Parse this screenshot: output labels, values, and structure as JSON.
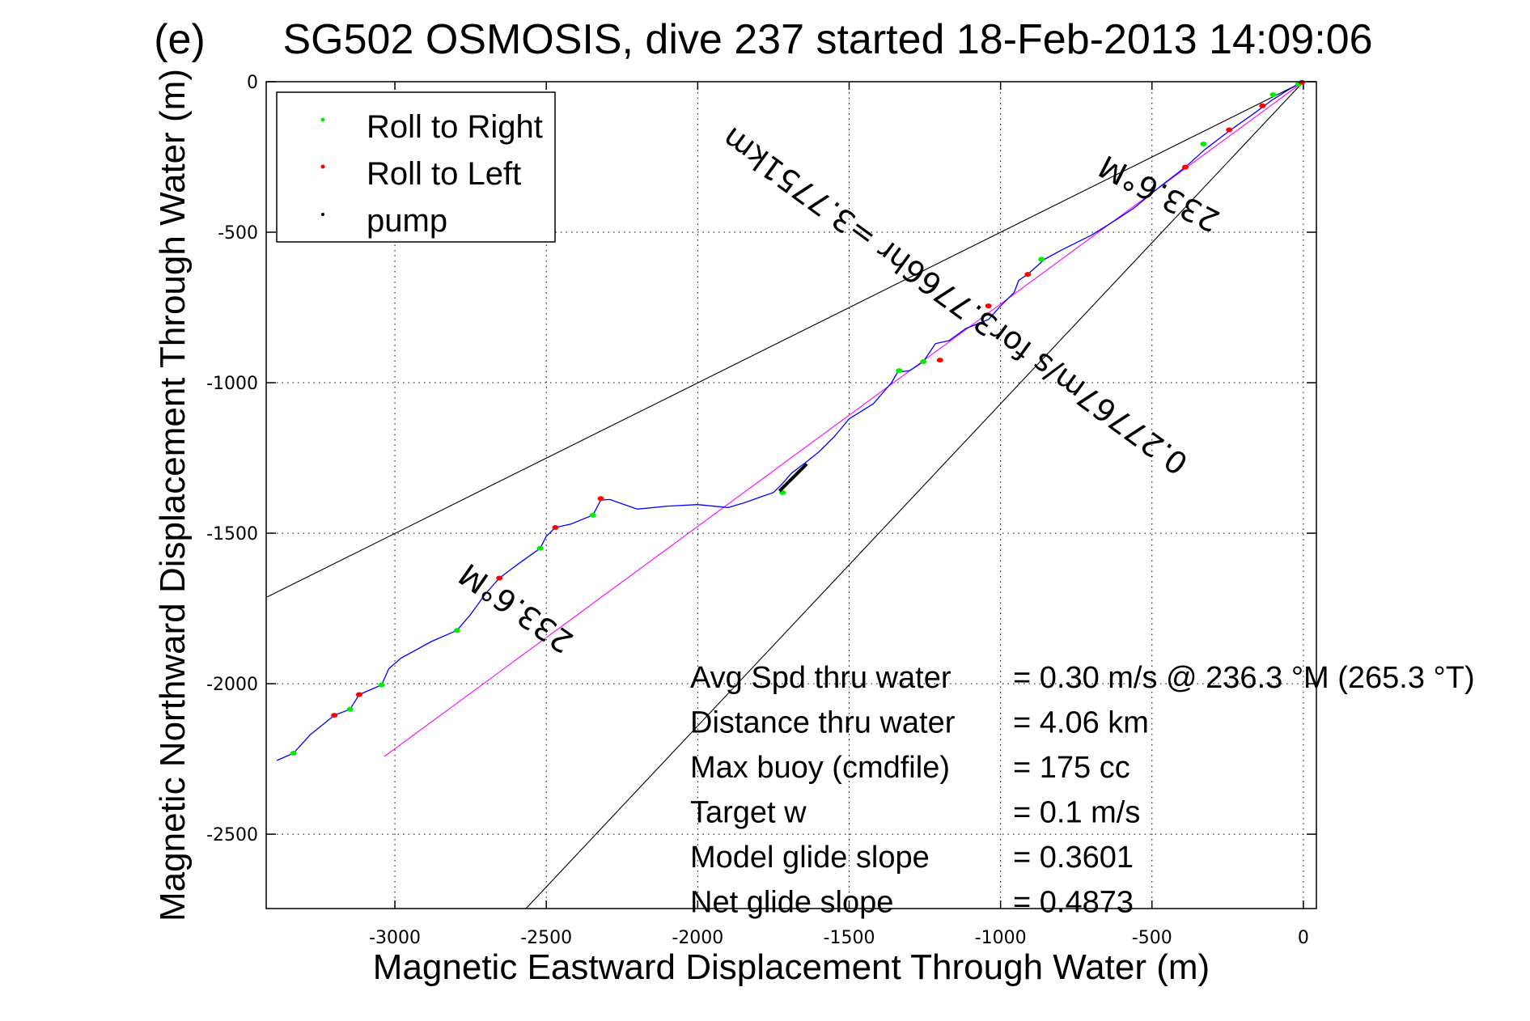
{
  "chart_data": {
    "type": "line",
    "title": "SG502 OSMOSIS, dive 237 started 18-Feb-2013 14:09:06",
    "title_overlay_glyph": "(e)",
    "xlabel": "Magnetic Eastward Displacement Through Water (m)",
    "ylabel": "Magnetic Northward Displacement Through Water (m)",
    "xlim": [
      -3425,
      43
    ],
    "ylim": [
      -2747,
      0
    ],
    "grid": true,
    "xticks": [
      -3000,
      -2500,
      -2000,
      -1500,
      -1000,
      -500,
      0
    ],
    "xtick_labels": [
      "-3000",
      "-2500",
      "-2000",
      "-1500",
      "-1000",
      "-500",
      "0"
    ],
    "yticks": [
      0,
      -500,
      -1000,
      -1500,
      -2000,
      -2500
    ],
    "ytick_labels": [
      "0",
      "-500",
      "-1000",
      "-1500",
      "-2000",
      "-2500"
    ],
    "legend": {
      "position": "top-left",
      "entries": [
        {
          "label": "Roll to Right",
          "color": "#00ee00"
        },
        {
          "label": "Roll to Left",
          "color": "#ff0000"
        },
        {
          "label": "pump",
          "color": "#000000"
        }
      ]
    },
    "series": [
      {
        "name": "Trajectory",
        "color": "#0000ff",
        "x": [
          -3390,
          -3335,
          -3280,
          -3200,
          -3148,
          -3118,
          -3044,
          -3020,
          -2980,
          -2880,
          -2795,
          -2750,
          -2700,
          -2655,
          -2590,
          -2520,
          -2500,
          -2470,
          -2420,
          -2346,
          -2320,
          -2290,
          -2200,
          -2100,
          -2000,
          -1900,
          -1850,
          -1750,
          -1720,
          -1690,
          -1650,
          -1600,
          -1550,
          -1500,
          -1420,
          -1360,
          -1340,
          -1300,
          -1255,
          -1215,
          -1170,
          -1115,
          -1040,
          -1000,
          -955,
          -940,
          -910,
          -855,
          -800,
          -700,
          -620,
          -560,
          -475,
          -390,
          -325,
          -240,
          -165,
          -105,
          -45,
          -16,
          0
        ],
        "y": [
          -2255,
          -2231,
          -2170,
          -2105,
          -2085,
          -2036,
          -2004,
          -1950,
          -1915,
          -1860,
          -1823,
          -1770,
          -1700,
          -1649,
          -1600,
          -1550,
          -1510,
          -1481,
          -1470,
          -1440,
          -1390,
          -1388,
          -1420,
          -1410,
          -1405,
          -1415,
          -1400,
          -1365,
          -1335,
          -1300,
          -1270,
          -1230,
          -1180,
          -1120,
          -1070,
          -1000,
          -965,
          -960,
          -930,
          -870,
          -860,
          -820,
          -790,
          -745,
          -700,
          -660,
          -640,
          -590,
          -560,
          -510,
          -460,
          -420,
          -350,
          -284,
          -225,
          -160,
          -107,
          -62,
          -24,
          -8,
          0
        ]
      },
      {
        "name": "Depth-average heading line",
        "color": "#ff00ff",
        "x": [
          -3035,
          0
        ],
        "y": [
          -2242,
          0
        ]
      },
      {
        "name": "Heading bound upper",
        "color": "#000000",
        "x": [
          -3422,
          0
        ],
        "y": [
          -1712,
          0
        ]
      },
      {
        "name": "Heading bound lower",
        "color": "#000000",
        "x": [
          -2567,
          0
        ],
        "y": [
          -2747,
          0
        ]
      }
    ],
    "markers": {
      "roll_right": {
        "color": "#00ee00",
        "points": [
          [
            -3335,
            -2231
          ],
          [
            -3148,
            -2085
          ],
          [
            -3044,
            -2004
          ],
          [
            -2795,
            -1823
          ],
          [
            -2520,
            -1550
          ],
          [
            -2346,
            -1440
          ],
          [
            -1720,
            -1365
          ],
          [
            -1335,
            -960
          ],
          [
            -1255,
            -930
          ],
          [
            -865,
            -590
          ],
          [
            -330,
            -207
          ],
          [
            -100,
            -43
          ],
          [
            -16,
            -8
          ]
        ]
      },
      "roll_left": {
        "color": "#ff0000",
        "points": [
          [
            -3200,
            -2105
          ],
          [
            -3118,
            -2036
          ],
          [
            -2655,
            -1649
          ],
          [
            -2470,
            -1481
          ],
          [
            -2320,
            -1385
          ],
          [
            -1200,
            -925
          ],
          [
            -1040,
            -745
          ],
          [
            -910,
            -640
          ],
          [
            -390,
            -284
          ],
          [
            -245,
            -160
          ],
          [
            -135,
            -80
          ],
          [
            -5,
            -2
          ]
        ]
      },
      "pump": {
        "color": "#000000",
        "segment_x": [
          -1730,
          -1640
        ],
        "segment_y": [
          -1360,
          -1270
        ]
      }
    },
    "annotations": [
      {
        "text": "233.6°M",
        "along": "upper-bound",
        "anchor_x": -460,
        "anchor_y": -340,
        "rotation_deg": 207
      },
      {
        "text": "233.6°M",
        "along": "trajectory",
        "anchor_x": -2580,
        "anchor_y": -1720,
        "rotation_deg": 215
      },
      {
        "text": "0.27767m/s for3.7766hr =3.7751km",
        "along": "magenta-line",
        "anchor_x": -1130,
        "anchor_y": -700,
        "rotation_deg": 216
      }
    ],
    "stats": [
      {
        "label": "Avg Spd thru water",
        "value": "=  0.30 m/s @ 236.3 °M (265.3 °T)"
      },
      {
        "label": "Distance thru water",
        "value": "=  4.06 km"
      },
      {
        "label": "Max buoy (cmdfile)",
        "value": "= 175 cc"
      },
      {
        "label": "Target w",
        "value": "= 0.1 m/s"
      },
      {
        "label": "Model glide slope",
        "value": "= 0.3601"
      },
      {
        "label": "Net glide slope",
        "value": "= 0.4873"
      }
    ]
  }
}
